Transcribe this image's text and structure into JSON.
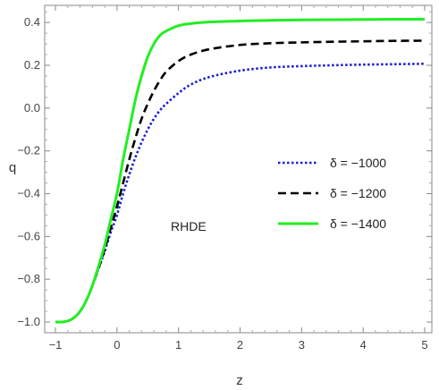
{
  "chart_data": {
    "type": "line",
    "xlabel": "z",
    "ylabel": "q",
    "xlim": [
      -1,
      5
    ],
    "ylim": [
      -1.05,
      0.48
    ],
    "x_ticks": [
      -1,
      0,
      1,
      2,
      3,
      4,
      5
    ],
    "x_tick_labels": [
      "−1",
      "0",
      "1",
      "2",
      "3",
      "4",
      "5"
    ],
    "y_ticks": [
      -1.0,
      -0.8,
      -0.6,
      -0.4,
      -0.2,
      0.0,
      0.2,
      0.4
    ],
    "y_tick_labels": [
      "−1.0",
      "−0.8",
      "−0.6",
      "−0.4",
      "−0.2",
      "0.0",
      "0.2",
      "0.4"
    ],
    "grid": false,
    "legend_position": "right",
    "annotation": "RHDE",
    "series": [
      {
        "name": "δ = −1000",
        "color": "#1f1fd0",
        "dash": "dotted",
        "x": [
          -1,
          -0.9,
          -0.8,
          -0.7,
          -0.6,
          -0.5,
          -0.4,
          -0.3,
          -0.2,
          -0.1,
          0,
          0.1,
          0.2,
          0.3,
          0.4,
          0.5,
          0.6,
          0.7,
          0.8,
          1.0,
          1.2,
          1.5,
          2,
          2.5,
          3,
          3.5,
          4,
          4.5,
          5
        ],
        "y": [
          -1.0,
          -1.0,
          -0.995,
          -0.98,
          -0.95,
          -0.9,
          -0.83,
          -0.75,
          -0.67,
          -0.58,
          -0.5,
          -0.4,
          -0.31,
          -0.23,
          -0.16,
          -0.1,
          -0.05,
          -0.01,
          0.02,
          0.07,
          0.11,
          0.145,
          0.175,
          0.19,
          0.196,
          0.2,
          0.203,
          0.205,
          0.207
        ]
      },
      {
        "name": "δ = −1200",
        "color": "#000000",
        "dash": "dashed",
        "x": [
          -1,
          -0.9,
          -0.8,
          -0.7,
          -0.6,
          -0.5,
          -0.4,
          -0.3,
          -0.2,
          -0.1,
          0,
          0.1,
          0.2,
          0.3,
          0.4,
          0.5,
          0.6,
          0.7,
          0.8,
          1.0,
          1.2,
          1.5,
          2,
          2.5,
          3,
          3.5,
          4,
          4.5,
          5
        ],
        "y": [
          -1.0,
          -1.0,
          -0.995,
          -0.98,
          -0.95,
          -0.9,
          -0.83,
          -0.75,
          -0.66,
          -0.56,
          -0.46,
          -0.35,
          -0.24,
          -0.14,
          -0.05,
          0.02,
          0.08,
          0.13,
          0.17,
          0.22,
          0.25,
          0.275,
          0.295,
          0.303,
          0.307,
          0.31,
          0.312,
          0.314,
          0.315
        ]
      },
      {
        "name": "δ = −1400",
        "color": "#22ee22",
        "dash": "solid",
        "x": [
          -1,
          -0.9,
          -0.8,
          -0.7,
          -0.6,
          -0.5,
          -0.4,
          -0.3,
          -0.2,
          -0.1,
          0,
          0.1,
          0.2,
          0.3,
          0.4,
          0.5,
          0.6,
          0.7,
          0.8,
          1.0,
          1.2,
          1.5,
          2,
          2.5,
          3,
          3.5,
          4,
          4.5,
          5
        ],
        "y": [
          -1.0,
          -1.0,
          -0.995,
          -0.98,
          -0.95,
          -0.9,
          -0.83,
          -0.74,
          -0.64,
          -0.52,
          -0.4,
          -0.24,
          -0.1,
          0.04,
          0.15,
          0.24,
          0.3,
          0.34,
          0.36,
          0.385,
          0.395,
          0.402,
          0.407,
          0.41,
          0.412,
          0.413,
          0.414,
          0.415,
          0.415
        ]
      }
    ]
  }
}
